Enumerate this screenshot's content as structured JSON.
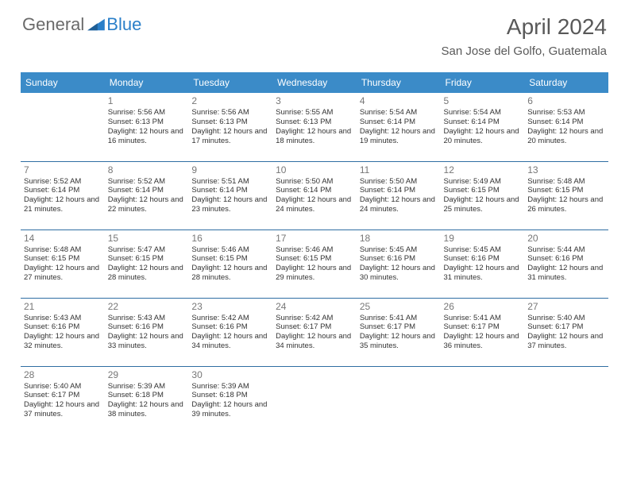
{
  "brand": {
    "part1": "General",
    "part2": "Blue"
  },
  "title": "April 2024",
  "location": "San Jose del Golfo, Guatemala",
  "colors": {
    "header_bg": "#3b8bc8",
    "header_text": "#ffffff",
    "rule": "#2f6ea3",
    "brand_gray": "#6a6a6a",
    "brand_blue": "#2a7fc9",
    "title_gray": "#595959",
    "daynum_gray": "#777777",
    "body_text": "#333333",
    "page_bg": "#ffffff"
  },
  "dow": [
    "Sunday",
    "Monday",
    "Tuesday",
    "Wednesday",
    "Thursday",
    "Friday",
    "Saturday"
  ],
  "weeks": [
    [
      {
        "n": "",
        "sr": "",
        "ss": "",
        "dl": ""
      },
      {
        "n": "1",
        "sr": "5:56 AM",
        "ss": "6:13 PM",
        "dl": "12 hours and 16 minutes."
      },
      {
        "n": "2",
        "sr": "5:56 AM",
        "ss": "6:13 PM",
        "dl": "12 hours and 17 minutes."
      },
      {
        "n": "3",
        "sr": "5:55 AM",
        "ss": "6:13 PM",
        "dl": "12 hours and 18 minutes."
      },
      {
        "n": "4",
        "sr": "5:54 AM",
        "ss": "6:14 PM",
        "dl": "12 hours and 19 minutes."
      },
      {
        "n": "5",
        "sr": "5:54 AM",
        "ss": "6:14 PM",
        "dl": "12 hours and 20 minutes."
      },
      {
        "n": "6",
        "sr": "5:53 AM",
        "ss": "6:14 PM",
        "dl": "12 hours and 20 minutes."
      }
    ],
    [
      {
        "n": "7",
        "sr": "5:52 AM",
        "ss": "6:14 PM",
        "dl": "12 hours and 21 minutes."
      },
      {
        "n": "8",
        "sr": "5:52 AM",
        "ss": "6:14 PM",
        "dl": "12 hours and 22 minutes."
      },
      {
        "n": "9",
        "sr": "5:51 AM",
        "ss": "6:14 PM",
        "dl": "12 hours and 23 minutes."
      },
      {
        "n": "10",
        "sr": "5:50 AM",
        "ss": "6:14 PM",
        "dl": "12 hours and 24 minutes."
      },
      {
        "n": "11",
        "sr": "5:50 AM",
        "ss": "6:14 PM",
        "dl": "12 hours and 24 minutes."
      },
      {
        "n": "12",
        "sr": "5:49 AM",
        "ss": "6:15 PM",
        "dl": "12 hours and 25 minutes."
      },
      {
        "n": "13",
        "sr": "5:48 AM",
        "ss": "6:15 PM",
        "dl": "12 hours and 26 minutes."
      }
    ],
    [
      {
        "n": "14",
        "sr": "5:48 AM",
        "ss": "6:15 PM",
        "dl": "12 hours and 27 minutes."
      },
      {
        "n": "15",
        "sr": "5:47 AM",
        "ss": "6:15 PM",
        "dl": "12 hours and 28 minutes."
      },
      {
        "n": "16",
        "sr": "5:46 AM",
        "ss": "6:15 PM",
        "dl": "12 hours and 28 minutes."
      },
      {
        "n": "17",
        "sr": "5:46 AM",
        "ss": "6:15 PM",
        "dl": "12 hours and 29 minutes."
      },
      {
        "n": "18",
        "sr": "5:45 AM",
        "ss": "6:16 PM",
        "dl": "12 hours and 30 minutes."
      },
      {
        "n": "19",
        "sr": "5:45 AM",
        "ss": "6:16 PM",
        "dl": "12 hours and 31 minutes."
      },
      {
        "n": "20",
        "sr": "5:44 AM",
        "ss": "6:16 PM",
        "dl": "12 hours and 31 minutes."
      }
    ],
    [
      {
        "n": "21",
        "sr": "5:43 AM",
        "ss": "6:16 PM",
        "dl": "12 hours and 32 minutes."
      },
      {
        "n": "22",
        "sr": "5:43 AM",
        "ss": "6:16 PM",
        "dl": "12 hours and 33 minutes."
      },
      {
        "n": "23",
        "sr": "5:42 AM",
        "ss": "6:16 PM",
        "dl": "12 hours and 34 minutes."
      },
      {
        "n": "24",
        "sr": "5:42 AM",
        "ss": "6:17 PM",
        "dl": "12 hours and 34 minutes."
      },
      {
        "n": "25",
        "sr": "5:41 AM",
        "ss": "6:17 PM",
        "dl": "12 hours and 35 minutes."
      },
      {
        "n": "26",
        "sr": "5:41 AM",
        "ss": "6:17 PM",
        "dl": "12 hours and 36 minutes."
      },
      {
        "n": "27",
        "sr": "5:40 AM",
        "ss": "6:17 PM",
        "dl": "12 hours and 37 minutes."
      }
    ],
    [
      {
        "n": "28",
        "sr": "5:40 AM",
        "ss": "6:17 PM",
        "dl": "12 hours and 37 minutes."
      },
      {
        "n": "29",
        "sr": "5:39 AM",
        "ss": "6:18 PM",
        "dl": "12 hours and 38 minutes."
      },
      {
        "n": "30",
        "sr": "5:39 AM",
        "ss": "6:18 PM",
        "dl": "12 hours and 39 minutes."
      },
      {
        "n": "",
        "sr": "",
        "ss": "",
        "dl": ""
      },
      {
        "n": "",
        "sr": "",
        "ss": "",
        "dl": ""
      },
      {
        "n": "",
        "sr": "",
        "ss": "",
        "dl": ""
      },
      {
        "n": "",
        "sr": "",
        "ss": "",
        "dl": ""
      }
    ]
  ],
  "labels": {
    "sunrise": "Sunrise: ",
    "sunset": "Sunset: ",
    "daylight": "Daylight: "
  }
}
